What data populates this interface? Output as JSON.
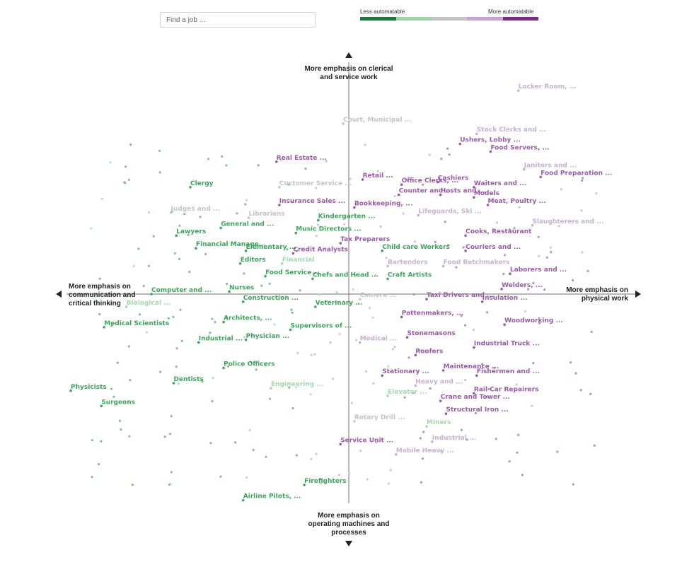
{
  "search": {
    "placeholder": "Find a job ..."
  },
  "legend": {
    "low_label": "Less automatable",
    "high_label": "More automatable",
    "scale_colors": [
      "#1a7a3c",
      "#9ad4a4",
      "#c3c3c3",
      "#c6a3d0",
      "#7b2d84"
    ]
  },
  "chart_data": {
    "type": "scatter",
    "axes": {
      "top": "More emphasis on clerical\nand service work",
      "bottom": "More emphasis on\noperating machines and\nprocesses",
      "left": "More emphasis on\ncommunication and\ncritical thinking",
      "right": "More emphasis on\nphysical work"
    },
    "xlim": [
      -1,
      1
    ],
    "ylim": [
      -1,
      1
    ],
    "colors": {
      "low": "#3aa65a",
      "lowmid": "#a3d9ad",
      "mid": "#c4c4c4",
      "midhigh": "#c8b0d3",
      "high": "#9a5aaa"
    },
    "labeled_points": [
      {
        "label": "Locker Room, ...",
        "x": 0.61,
        "y": 0.8,
        "level": "midhigh"
      },
      {
        "label": "Court, Municipal ...",
        "x": -0.02,
        "y": 0.67,
        "level": "mid"
      },
      {
        "label": "Stock Clerks and ...",
        "x": 0.46,
        "y": 0.63,
        "level": "midhigh"
      },
      {
        "label": "Ushers, Lobby ...",
        "x": 0.4,
        "y": 0.59,
        "level": "high"
      },
      {
        "label": "Food Servers, ...",
        "x": 0.51,
        "y": 0.56,
        "level": "high"
      },
      {
        "label": "Real Estate ...",
        "x": -0.26,
        "y": 0.52,
        "level": "high"
      },
      {
        "label": "Janitors and ...",
        "x": 0.63,
        "y": 0.49,
        "level": "midhigh"
      },
      {
        "label": "Food Preparation ...",
        "x": 0.69,
        "y": 0.46,
        "level": "high"
      },
      {
        "label": "Retail ...",
        "x": 0.05,
        "y": 0.45,
        "level": "high"
      },
      {
        "label": "Office Clerks, ...",
        "x": 0.19,
        "y": 0.43,
        "level": "high"
      },
      {
        "label": "Cashiers",
        "x": 0.32,
        "y": 0.44,
        "level": "high"
      },
      {
        "label": "Waiters and ...",
        "x": 0.45,
        "y": 0.42,
        "level": "high"
      },
      {
        "label": "Clergy",
        "x": -0.57,
        "y": 0.42,
        "level": "low"
      },
      {
        "label": "Customer Service ...",
        "x": -0.25,
        "y": 0.42,
        "level": "mid"
      },
      {
        "label": "Counter and ...",
        "x": 0.18,
        "y": 0.39,
        "level": "high"
      },
      {
        "label": "Hosts and ...",
        "x": 0.33,
        "y": 0.39,
        "level": "high"
      },
      {
        "label": "Models",
        "x": 0.45,
        "y": 0.38,
        "level": "high"
      },
      {
        "label": "Meat, Poultry ...",
        "x": 0.5,
        "y": 0.35,
        "level": "high"
      },
      {
        "label": "Insurance Sales ...",
        "x": -0.25,
        "y": 0.35,
        "level": "high"
      },
      {
        "label": "Bookkeeping, ...",
        "x": 0.02,
        "y": 0.34,
        "level": "high"
      },
      {
        "label": "Judges and ...",
        "x": -0.64,
        "y": 0.32,
        "level": "mid"
      },
      {
        "label": "Librarians",
        "x": -0.36,
        "y": 0.3,
        "level": "mid"
      },
      {
        "label": "Lifeguards, Ski ...",
        "x": 0.25,
        "y": 0.31,
        "level": "midhigh"
      },
      {
        "label": "Kindergarten ...",
        "x": -0.11,
        "y": 0.29,
        "level": "low"
      },
      {
        "label": "Slaughterers and ...",
        "x": 0.66,
        "y": 0.27,
        "level": "midhigh"
      },
      {
        "label": "General and ...",
        "x": -0.46,
        "y": 0.26,
        "level": "low"
      },
      {
        "label": "Lawyers",
        "x": -0.62,
        "y": 0.23,
        "level": "low"
      },
      {
        "label": "Music Directors ...",
        "x": -0.19,
        "y": 0.24,
        "level": "low"
      },
      {
        "label": "Cooks, Restaurant",
        "x": 0.42,
        "y": 0.23,
        "level": "high"
      },
      {
        "label": "Tax Preparers",
        "x": -0.03,
        "y": 0.2,
        "level": "high"
      },
      {
        "label": "Financial Manage...",
        "x": -0.55,
        "y": 0.18,
        "level": "low"
      },
      {
        "label": "Elementary ...",
        "x": -0.37,
        "y": 0.17,
        "level": "low"
      },
      {
        "label": "Credit Analysts",
        "x": -0.2,
        "y": 0.16,
        "level": "high"
      },
      {
        "label": "Child care Workers",
        "x": 0.12,
        "y": 0.17,
        "level": "low"
      },
      {
        "label": "Couriers and ...",
        "x": 0.42,
        "y": 0.17,
        "level": "high"
      },
      {
        "label": "Editors",
        "x": -0.39,
        "y": 0.12,
        "level": "low"
      },
      {
        "label": "Financial",
        "x": -0.24,
        "y": 0.12,
        "level": "lowmid"
      },
      {
        "label": "Bartenders",
        "x": 0.14,
        "y": 0.11,
        "level": "midhigh"
      },
      {
        "label": "Food Batchmakers",
        "x": 0.34,
        "y": 0.11,
        "level": "midhigh"
      },
      {
        "label": "Laborers and ...",
        "x": 0.58,
        "y": 0.08,
        "level": "high"
      },
      {
        "label": "Food Service ...",
        "x": -0.3,
        "y": 0.07,
        "level": "low"
      },
      {
        "label": "Chefs and Head ...",
        "x": -0.13,
        "y": 0.06,
        "level": "low"
      },
      {
        "label": "Craft Artists",
        "x": 0.14,
        "y": 0.06,
        "level": "low"
      },
      {
        "label": "Welders, ...",
        "x": 0.55,
        "y": 0.02,
        "level": "high"
      },
      {
        "label": "Computer and ...",
        "x": -0.71,
        "y": 0.0,
        "level": "low"
      },
      {
        "label": "Nurses",
        "x": -0.43,
        "y": 0.01,
        "level": "low"
      },
      {
        "label": "Camera ...",
        "x": 0.04,
        "y": -0.02,
        "level": "mid"
      },
      {
        "label": "Taxi Drivers and ...",
        "x": 0.28,
        "y": -0.02,
        "level": "high"
      },
      {
        "label": "Insulation ...",
        "x": 0.48,
        "y": -0.03,
        "level": "high"
      },
      {
        "label": "Construction ...",
        "x": -0.38,
        "y": -0.03,
        "level": "low"
      },
      {
        "label": "Biological ...",
        "x": -0.8,
        "y": -0.05,
        "level": "lowmid"
      },
      {
        "label": "Veterinary ...",
        "x": -0.12,
        "y": -0.05,
        "level": "low"
      },
      {
        "label": "Pattenmakers, ...",
        "x": 0.19,
        "y": -0.09,
        "level": "high"
      },
      {
        "label": "Architects, ...",
        "x": -0.45,
        "y": -0.11,
        "level": "low"
      },
      {
        "label": "Woodworking ...",
        "x": 0.56,
        "y": -0.12,
        "level": "high"
      },
      {
        "label": "Medical Scientists",
        "x": -0.88,
        "y": -0.13,
        "level": "low"
      },
      {
        "label": "Supervisors of ...",
        "x": -0.21,
        "y": -0.14,
        "level": "low"
      },
      {
        "label": "Stonemasons",
        "x": 0.21,
        "y": -0.17,
        "level": "high"
      },
      {
        "label": "Industrial ...",
        "x": -0.54,
        "y": -0.19,
        "level": "low"
      },
      {
        "label": "Physician ...",
        "x": -0.37,
        "y": -0.18,
        "level": "low"
      },
      {
        "label": "Medical ...",
        "x": 0.04,
        "y": -0.19,
        "level": "midhigh"
      },
      {
        "label": "Industrial Truck ...",
        "x": 0.45,
        "y": -0.21,
        "level": "high"
      },
      {
        "label": "Roofers",
        "x": 0.24,
        "y": -0.24,
        "level": "high"
      },
      {
        "label": "Police Officers",
        "x": -0.45,
        "y": -0.29,
        "level": "low"
      },
      {
        "label": "Maintenance ...",
        "x": 0.34,
        "y": -0.3,
        "level": "high"
      },
      {
        "label": "Stationary ...",
        "x": 0.12,
        "y": -0.32,
        "level": "high"
      },
      {
        "label": "Fishermen and ...",
        "x": 0.46,
        "y": -0.32,
        "level": "high"
      },
      {
        "label": "Dentists",
        "x": -0.63,
        "y": -0.35,
        "level": "low"
      },
      {
        "label": "Heavy and ...",
        "x": 0.24,
        "y": -0.36,
        "level": "midhigh"
      },
      {
        "label": "Engineering ...",
        "x": -0.28,
        "y": -0.37,
        "level": "lowmid"
      },
      {
        "label": "Physicists",
        "x": -1.0,
        "y": -0.38,
        "level": "low"
      },
      {
        "label": "Rail Car Repairers",
        "x": 0.45,
        "y": -0.39,
        "level": "high"
      },
      {
        "label": "Elevator ...",
        "x": 0.14,
        "y": -0.4,
        "level": "lowmid"
      },
      {
        "label": "Crane and Tower ...",
        "x": 0.33,
        "y": -0.42,
        "level": "high"
      },
      {
        "label": "Surgeons",
        "x": -0.89,
        "y": -0.44,
        "level": "low"
      },
      {
        "label": "Structural Iron ...",
        "x": 0.35,
        "y": -0.47,
        "level": "high"
      },
      {
        "label": "Rotary Drill ...",
        "x": 0.02,
        "y": -0.5,
        "level": "mid"
      },
      {
        "label": "Miners",
        "x": 0.28,
        "y": -0.52,
        "level": "lowmid"
      },
      {
        "label": "Industrial ...",
        "x": 0.3,
        "y": -0.58,
        "level": "midhigh"
      },
      {
        "label": "Service Unit ...",
        "x": -0.03,
        "y": -0.59,
        "level": "high"
      },
      {
        "label": "Mobile Heavy ...",
        "x": 0.17,
        "y": -0.63,
        "level": "midhigh"
      },
      {
        "label": "Firefighters",
        "x": -0.16,
        "y": -0.75,
        "level": "low"
      },
      {
        "label": "Airline Pilots, ...",
        "x": -0.38,
        "y": -0.81,
        "level": "low"
      }
    ]
  }
}
